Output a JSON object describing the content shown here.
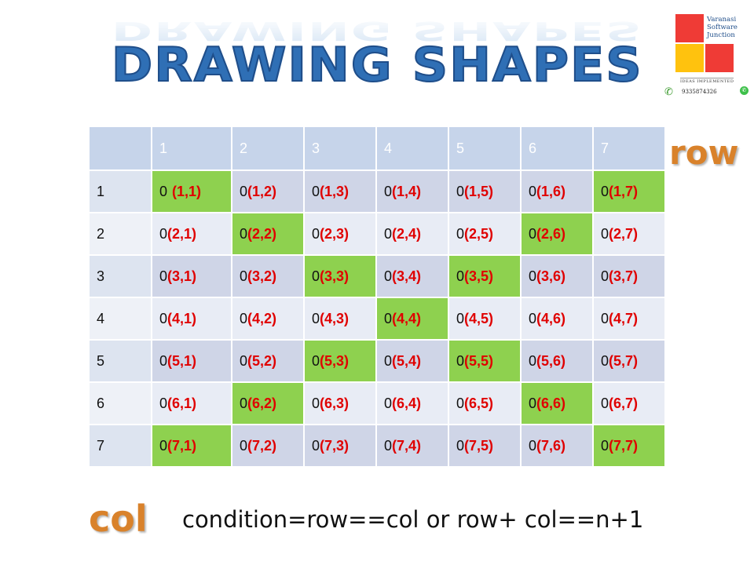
{
  "title": "DRAWING SHAPES",
  "logo": {
    "lines": [
      "Varanasi",
      "Software",
      "Junction"
    ],
    "tagline": "IDEAS IMPLEMENTED",
    "phone": "9335874326"
  },
  "grid": {
    "column_headers": [
      "1",
      "2",
      "3",
      "4",
      "5",
      "6",
      "7"
    ],
    "rows": [
      {
        "label": "1",
        "cells": [
          {
            "v": "0",
            "c": "(1,1)",
            "hl": true
          },
          {
            "v": "0",
            "c": "(1,2)",
            "hl": false
          },
          {
            "v": "0",
            "c": "(1,3)",
            "hl": false
          },
          {
            "v": "0",
            "c": "(1,4)",
            "hl": false
          },
          {
            "v": "0",
            "c": "(1,5)",
            "hl": false
          },
          {
            "v": "0",
            "c": "(1,6)",
            "hl": false
          },
          {
            "v": "0",
            "c": "(1,7)",
            "hl": true
          }
        ]
      },
      {
        "label": "2",
        "cells": [
          {
            "v": "0",
            "c": "(2,1)",
            "hl": false
          },
          {
            "v": "0",
            "c": "(2,2)",
            "hl": true
          },
          {
            "v": "0",
            "c": "(2,3)",
            "hl": false
          },
          {
            "v": "0",
            "c": "(2,4)",
            "hl": false
          },
          {
            "v": "0",
            "c": "(2,5)",
            "hl": false
          },
          {
            "v": "0",
            "c": "(2,6)",
            "hl": true
          },
          {
            "v": "0",
            "c": "(2,7)",
            "hl": false
          }
        ]
      },
      {
        "label": "3",
        "cells": [
          {
            "v": "0",
            "c": "(3,1)",
            "hl": false
          },
          {
            "v": "0",
            "c": "(3,2)",
            "hl": false
          },
          {
            "v": "0",
            "c": "(3,3)",
            "hl": true
          },
          {
            "v": "0",
            "c": "(3,4)",
            "hl": false
          },
          {
            "v": "0",
            "c": "(3,5)",
            "hl": true
          },
          {
            "v": "0",
            "c": "(3,6)",
            "hl": false
          },
          {
            "v": "0",
            "c": "(3,7)",
            "hl": false
          }
        ]
      },
      {
        "label": "4",
        "cells": [
          {
            "v": "0",
            "c": "(4,1)",
            "hl": false
          },
          {
            "v": "0",
            "c": "(4,2)",
            "hl": false
          },
          {
            "v": "0",
            "c": "(4,3)",
            "hl": false
          },
          {
            "v": "0",
            "c": "(4,4)",
            "hl": true
          },
          {
            "v": "0",
            "c": "(4,5)",
            "hl": false
          },
          {
            "v": "0",
            "c": "(4,6)",
            "hl": false
          },
          {
            "v": "0",
            "c": "(4,7)",
            "hl": false
          }
        ]
      },
      {
        "label": "5",
        "cells": [
          {
            "v": "0",
            "c": "(5,1)",
            "hl": false
          },
          {
            "v": "0",
            "c": "(5,2)",
            "hl": false
          },
          {
            "v": "0",
            "c": "(5,3)",
            "hl": true
          },
          {
            "v": "0",
            "c": "(5,4)",
            "hl": false
          },
          {
            "v": "0",
            "c": "(5,5)",
            "hl": true
          },
          {
            "v": "0",
            "c": "(5,6)",
            "hl": false
          },
          {
            "v": "0",
            "c": "(5,7)",
            "hl": false
          }
        ]
      },
      {
        "label": "6",
        "cells": [
          {
            "v": "0",
            "c": "(6,1)",
            "hl": false
          },
          {
            "v": "0",
            "c": "(6,2)",
            "hl": true
          },
          {
            "v": "0",
            "c": "(6,3)",
            "hl": false
          },
          {
            "v": "0",
            "c": "(6,4)",
            "hl": false
          },
          {
            "v": "0",
            "c": "(6,5)",
            "hl": false
          },
          {
            "v": "0",
            "c": "(6,6)",
            "hl": true
          },
          {
            "v": "0",
            "c": "(6,7)",
            "hl": false
          }
        ]
      },
      {
        "label": "7",
        "cells": [
          {
            "v": "0",
            "c": "(7,1)",
            "hl": true
          },
          {
            "v": "0",
            "c": "(7,2)",
            "hl": false
          },
          {
            "v": "0",
            "c": "(7,3)",
            "hl": false
          },
          {
            "v": "0",
            "c": "(7,4)",
            "hl": false
          },
          {
            "v": "0",
            "c": "(7,5)",
            "hl": false
          },
          {
            "v": "0",
            "c": "(7,6)",
            "hl": false
          },
          {
            "v": "0",
            "c": "(7,7)",
            "hl": true
          }
        ]
      }
    ]
  },
  "row_label": "row",
  "col_label": "col",
  "condition": "condition=row==col or row+ col==n+1",
  "colors": {
    "highlight": "#8ed14f",
    "coord_text": "#e00000",
    "label_orange": "#d9822b",
    "title_blue": "#2f6fb5"
  },
  "icons": {
    "phone": "phone-icon",
    "whatsapp": "whatsapp-icon"
  }
}
